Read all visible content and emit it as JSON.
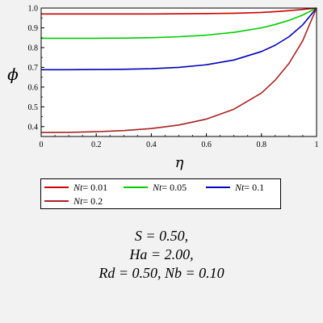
{
  "chart_data": {
    "type": "line",
    "xlabel": "η",
    "ylabel": "ϕ",
    "xlim": [
      0,
      1
    ],
    "ylim": [
      0.35,
      1.0
    ],
    "xticks": [
      "0",
      "0.2",
      "0.4",
      "0.6",
      "0.8",
      "1"
    ],
    "yticks": [
      "0.4",
      "0.5",
      "0.6",
      "0.7",
      "0.8",
      "0.9",
      "1.0"
    ],
    "grid": false,
    "legend_position": "bottom",
    "series": [
      {
        "name": "Nt = 0.01",
        "color": "#cc0000",
        "x": [
          0,
          0.1,
          0.2,
          0.3,
          0.4,
          0.5,
          0.6,
          0.7,
          0.8,
          0.85,
          0.9,
          0.95,
          1.0
        ],
        "y": [
          0.97,
          0.97,
          0.97,
          0.97,
          0.97,
          0.971,
          0.972,
          0.974,
          0.978,
          0.982,
          0.987,
          0.993,
          1.0
        ]
      },
      {
        "name": "Nt = 0.05",
        "color": "#00cc00",
        "x": [
          0,
          0.1,
          0.2,
          0.3,
          0.4,
          0.5,
          0.6,
          0.7,
          0.8,
          0.85,
          0.9,
          0.95,
          1.0
        ],
        "y": [
          0.847,
          0.847,
          0.847,
          0.848,
          0.85,
          0.855,
          0.863,
          0.877,
          0.9,
          0.917,
          0.938,
          0.965,
          1.0
        ]
      },
      {
        "name": "Nt = 0.1",
        "color": "#0000bb",
        "x": [
          0,
          0.1,
          0.2,
          0.3,
          0.4,
          0.5,
          0.6,
          0.7,
          0.8,
          0.85,
          0.9,
          0.95,
          1.0
        ],
        "y": [
          0.688,
          0.688,
          0.689,
          0.69,
          0.693,
          0.7,
          0.713,
          0.737,
          0.78,
          0.812,
          0.855,
          0.915,
          1.0
        ]
      },
      {
        "name": "Nt = 0.2",
        "color": "#aa2222",
        "x": [
          0,
          0.1,
          0.2,
          0.3,
          0.4,
          0.5,
          0.6,
          0.7,
          0.8,
          0.85,
          0.9,
          0.95,
          1.0
        ],
        "y": [
          0.37,
          0.371,
          0.374,
          0.38,
          0.39,
          0.408,
          0.438,
          0.488,
          0.57,
          0.635,
          0.72,
          0.835,
          1.0
        ]
      }
    ]
  },
  "legend": {
    "items": [
      {
        "var": "Nt",
        "value": " = 0.01",
        "color": "#cc0000"
      },
      {
        "var": "Nt",
        "value": " = 0.05",
        "color": "#00cc00"
      },
      {
        "var": "Nt",
        "value": " = 0.1",
        "color": "#0000bb"
      },
      {
        "var": "Nt",
        "value": " = 0.2",
        "color": "#aa2222"
      }
    ]
  },
  "caption": {
    "line1": "S = 0.50,",
    "line2": "Ha = 2.00,",
    "line3": "Rd = 0.50, Nb = 0.10"
  }
}
